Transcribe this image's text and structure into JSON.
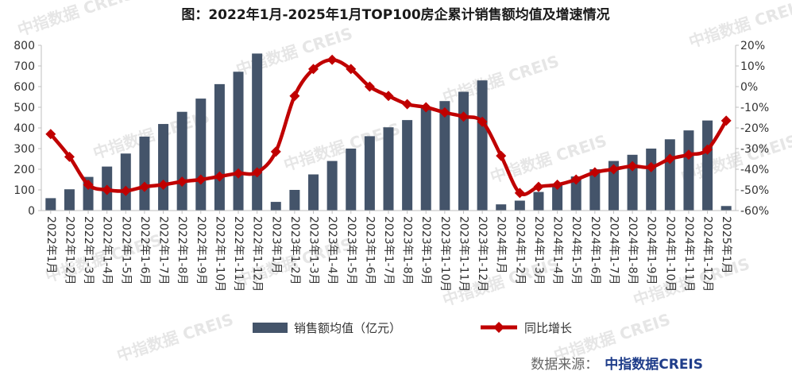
{
  "chart_data": {
    "type": "bar+line",
    "title": "图：2022年1月-2025年1月TOP100房企累计销售额均值及增速情况",
    "categories": [
      "2022年1月",
      "2022年1-2月",
      "2022年1-3月",
      "2022年1-4月",
      "2022年1-5月",
      "2022年1-6月",
      "2022年1-7月",
      "2022年1-8月",
      "2022年1-9月",
      "2022年1-10月",
      "2022年1-11月",
      "2022年1-12月",
      "2023年1月",
      "2023年1-2月",
      "2023年1-3月",
      "2023年1-4月",
      "2023年1-5月",
      "2023年1-6月",
      "2023年1-7月",
      "2023年1-8月",
      "2023年1-9月",
      "2023年1-10月",
      "2023年1-11月",
      "2023年1-12月",
      "2024年1月",
      "2024年1-2月",
      "2024年1-3月",
      "2024年1-4月",
      "2024年1-5月",
      "2024年1-6月",
      "2024年1-7月",
      "2024年1-8月",
      "2024年1-9月",
      "2024年1-10月",
      "2024年1-11月",
      "2024年1-12月",
      "2025年1月"
    ],
    "series": [
      {
        "name": "销售额均值（亿元）",
        "type": "bar",
        "axis": "left",
        "color": "#44546a",
        "values": [
          60,
          103,
          163,
          213,
          276,
          358,
          419,
          478,
          542,
          612,
          672,
          760,
          42,
          100,
          175,
          240,
          300,
          360,
          403,
          438,
          500,
          530,
          575,
          630,
          30,
          48,
          90,
          130,
          165,
          200,
          240,
          270,
          300,
          345,
          388,
          436,
          22
        ]
      },
      {
        "name": "同比增长",
        "type": "line",
        "axis": "right",
        "color": "#c00000",
        "values": [
          -23,
          -34,
          -47.5,
          -50,
          -50.5,
          -48.5,
          -47.5,
          -46,
          -45,
          -43.5,
          -42,
          -41.5,
          -31.5,
          -4.5,
          8.5,
          13,
          8.5,
          0,
          -4.5,
          -8.5,
          -10,
          -12.5,
          -14.5,
          -17,
          -33.5,
          -51.5,
          -48.5,
          -47.5,
          -45,
          -41.5,
          -40,
          -38.5,
          -39,
          -35,
          -33,
          -30.5,
          -16.5
        ]
      }
    ],
    "y_left": {
      "min": 0,
      "max": 800,
      "ticks": [
        "0",
        "100",
        "200",
        "300",
        "400",
        "500",
        "600",
        "700",
        "800"
      ]
    },
    "y_right": {
      "min": -60,
      "max": 20,
      "ticks": [
        "-60%",
        "-50%",
        "-40%",
        "-30%",
        "-20%",
        "-10%",
        "0%",
        "10%",
        "20%"
      ]
    },
    "legend": [
      "销售额均值（亿元）",
      "同比增长"
    ],
    "legend_position": "bottom"
  },
  "watermark": "中指数据 CREIS",
  "footer": {
    "source_label": "数据来源：",
    "brand": "中指数据CREIS"
  }
}
